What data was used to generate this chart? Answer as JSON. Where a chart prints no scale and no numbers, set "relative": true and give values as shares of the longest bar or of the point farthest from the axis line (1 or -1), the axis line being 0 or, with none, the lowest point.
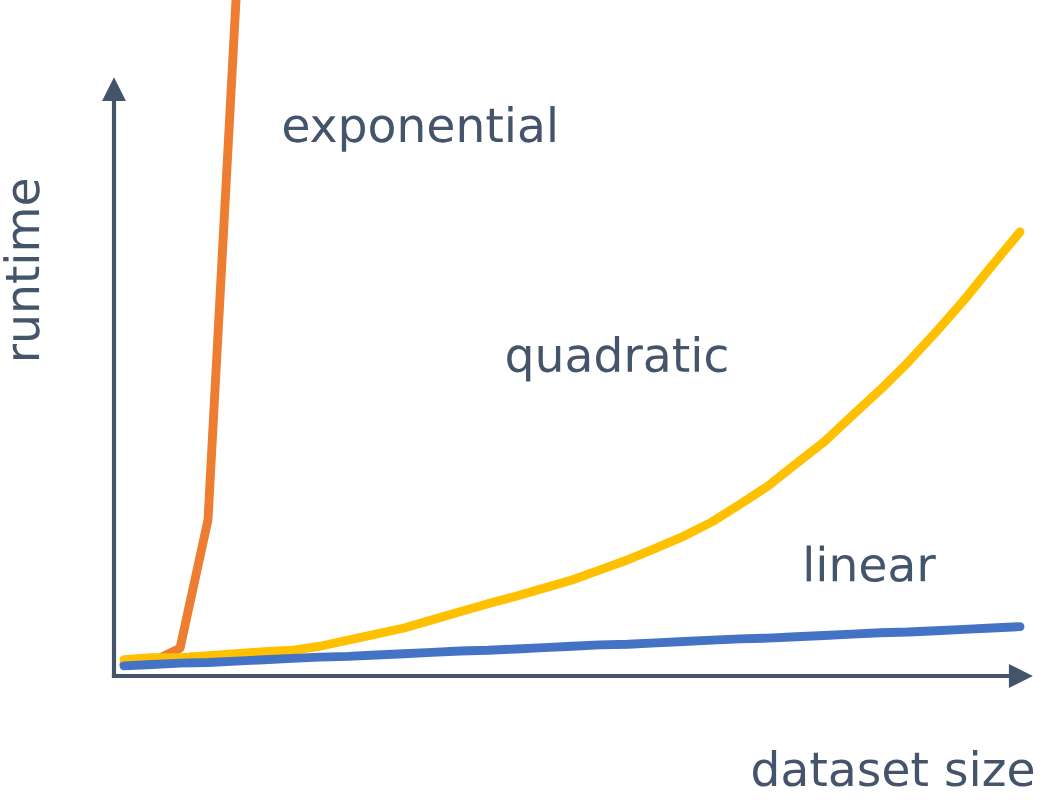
{
  "chart_data": {
    "type": "line",
    "relative": true,
    "xlabel": "dataset size",
    "ylabel": "runtime",
    "categories": [
      null,
      null,
      null,
      null,
      null,
      null,
      null,
      null,
      null,
      null,
      null,
      null,
      null,
      null,
      null,
      null,
      null,
      null,
      null,
      null,
      null,
      null,
      null,
      null,
      null,
      null,
      null,
      null,
      null,
      null,
      null,
      null,
      null
    ],
    "series": [
      {
        "name": "exponential",
        "color": "#ed7d31",
        "values": [
          0.018,
          0.021,
          0.041,
          0.231,
          1,
          null,
          null,
          null,
          null,
          null,
          null,
          null,
          null,
          null,
          null,
          null,
          null,
          null,
          null,
          null,
          null,
          null,
          null,
          null,
          null,
          null,
          null,
          null,
          null,
          null,
          null,
          null,
          null
        ]
      },
      {
        "name": "quadratic",
        "color": "#ffc000",
        "values": [
          0.024,
          0.027,
          0.027,
          0.03,
          0.033,
          0.036,
          0.038,
          0.044,
          0.053,
          0.062,
          0.071,
          0.083,
          0.095,
          0.107,
          0.118,
          0.13,
          0.142,
          0.157,
          0.172,
          0.189,
          0.207,
          0.228,
          0.254,
          0.281,
          0.314,
          0.346,
          0.385,
          0.423,
          0.464,
          0.509,
          0.556,
          0.607,
          0.657
        ]
      },
      {
        "name": "linear",
        "color": "#4472c4",
        "values": [
          0.015,
          0.017,
          0.019,
          0.02,
          0.022,
          0.024,
          0.026,
          0.028,
          0.029,
          0.031,
          0.033,
          0.035,
          0.037,
          0.038,
          0.04,
          0.042,
          0.044,
          0.046,
          0.047,
          0.049,
          0.051,
          0.053,
          0.055,
          0.056,
          0.058,
          0.06,
          0.062,
          0.064,
          0.065,
          0.067,
          0.069,
          0.071,
          0.073
        ]
      }
    ]
  }
}
